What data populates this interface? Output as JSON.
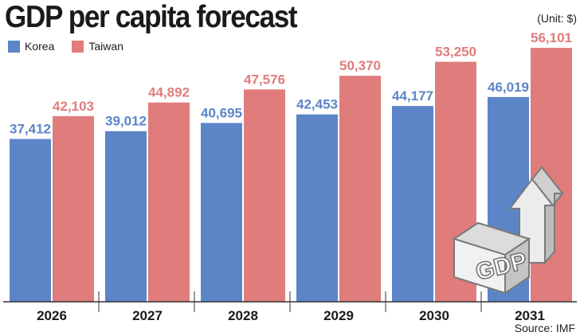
{
  "colors": {
    "korea": "#5b85c7",
    "taiwan": "#e07c7c",
    "background": "#ffffff"
  },
  "header": {
    "title": "GDP per capita forecast",
    "unit": "(Unit: $)"
  },
  "footer": {
    "source": "Source: IMF"
  },
  "graphic": {
    "icon": "gdp-up-arrow-icon",
    "text": "GDP"
  },
  "chart_data": {
    "type": "bar",
    "title": "GDP per capita forecast",
    "ylabel": "$",
    "xlabel": "",
    "ylim": [
      0,
      60000
    ],
    "legend": "top-left",
    "grid": false,
    "categories": [
      "2026",
      "2027",
      "2028",
      "2029",
      "2030",
      "2031"
    ],
    "series": [
      {
        "name": "Korea",
        "values": [
          37412,
          39012,
          40695,
          42453,
          44177,
          46019
        ],
        "labels": [
          "37,412",
          "39,012",
          "40,695",
          "42,453",
          "44,177",
          "46,019"
        ]
      },
      {
        "name": "Taiwan",
        "values": [
          42103,
          44892,
          47576,
          50370,
          53250,
          56101
        ],
        "labels": [
          "42,103",
          "44,892",
          "47,576",
          "50,370",
          "53,250",
          "56,101"
        ]
      }
    ]
  }
}
